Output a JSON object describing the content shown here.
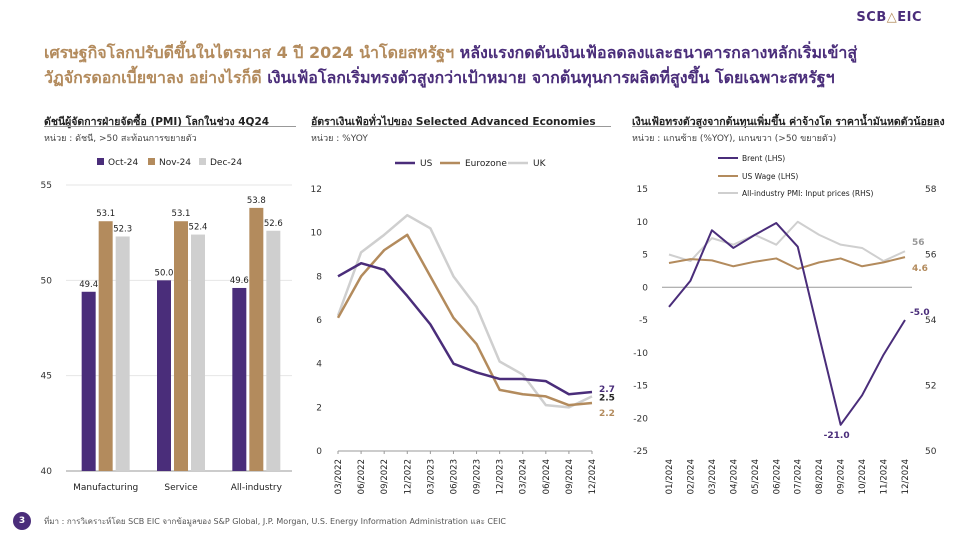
{
  "logo": {
    "text1": "SCB",
    "icon": "triangle-logo-icon",
    "text2": "EIC"
  },
  "headline": {
    "part1": "เศรษฐกิจโลกปรับดีขึ้นในไตรมาส 4 ปี 2024 นำโดยสหรัฐฯ ",
    "part2": "หลังแรงกดดันเงินเฟ้อลดลงและธนาคารกลางหลักเริ่มเข้าสู่",
    "part3": "วัฏจักรดอกเบี้ยขาลง อย่างไรก็ดี ",
    "part4": "เงินเฟ้อโลกเริ่มทรงตัวสูงกว่าเป้าหมาย จากต้นทุนการผลิตที่สูงขึ้น โดยเฉพาะสหรัฐฯ"
  },
  "colors": {
    "purple": "#4a2d7a",
    "gold": "#b38b5d",
    "grey": "#cfcfcf"
  },
  "panels": [
    {
      "title": "ดัชนีผู้จัดการฝ่ายจัดซื้อ (PMI) โลกในช่วง 4Q24",
      "subtitle": "หน่วย : ดัชนี, >50 สะท้อนการขยายตัว"
    },
    {
      "title": "อัตราเงินเฟ้อทั่วไปของ Selected Advanced Economies",
      "subtitle": "หน่วย : %YOY"
    },
    {
      "title": "เงินเฟ้อทรงตัวสูงจากต้นทุนเพิ่มขึ้น ค่าจ้างโต ราคาน้ำมันหดตัวน้อยลง",
      "subtitle": "หน่วย : แกนซ้าย (%YOY), แกนขวา (>50 ขยายตัว)"
    }
  ],
  "footer": {
    "page": "3",
    "source": "ที่มา : การวิเคราะห์โดย SCB EIC จากข้อมูลของ S&P Global, J.P. Morgan, U.S. Energy Information Administration และ CEIC"
  },
  "chart_data": [
    {
      "type": "bar",
      "title": "ดัชนีผู้จัดการฝ่ายจัดซื้อ (PMI) โลกในช่วง 4Q24",
      "categories": [
        "Manufacturing",
        "Service",
        "All-industry"
      ],
      "series": [
        {
          "name": "Oct-24",
          "color": "#4a2d7a",
          "values": [
            49.4,
            50.0,
            49.6
          ],
          "labels": [
            "49.4",
            "50.0",
            "49.6"
          ]
        },
        {
          "name": "Nov-24",
          "color": "#b38b5d",
          "values": [
            53.1,
            53.1,
            53.8
          ],
          "labels": [
            "53.1",
            "53.1",
            "53.8"
          ]
        },
        {
          "name": "Dec-24",
          "color": "#cfcfcf",
          "values": [
            52.3,
            52.4,
            52.6
          ],
          "labels": [
            "52.3",
            "52.4",
            "52.6"
          ]
        }
      ],
      "ylim": [
        40,
        55
      ],
      "yticks": [
        "40",
        "45",
        "50",
        "55"
      ],
      "legend": "top"
    },
    {
      "type": "line",
      "title": "อัตราเงินเฟ้อทั่วไปของ Selected Advanced Economies",
      "x_ticks": [
        "03/2022",
        "06/2022",
        "09/2022",
        "12/2022",
        "03/2023",
        "06/2023",
        "09/2023",
        "12/2023",
        "03/2024",
        "06/2024",
        "09/2024",
        "12/2024"
      ],
      "series": [
        {
          "name": "US",
          "color": "#4a2d7a",
          "values": [
            8.0,
            8.6,
            8.3,
            7.1,
            5.8,
            4.0,
            3.6,
            3.3,
            3.3,
            3.2,
            2.6,
            2.7
          ],
          "end_label": "2.7"
        },
        {
          "name": "Eurozone",
          "color": "#b38b5d",
          "values": [
            6.1,
            8.0,
            9.2,
            9.9,
            8.0,
            6.1,
            4.9,
            2.8,
            2.6,
            2.5,
            2.1,
            2.2
          ],
          "end_label": "2.2"
        },
        {
          "name": "UK",
          "color": "#cfcfcf",
          "values": [
            6.2,
            9.1,
            9.9,
            10.8,
            10.2,
            8.0,
            6.6,
            4.1,
            3.5,
            2.1,
            2.0,
            2.5
          ],
          "end_label": "2.5"
        }
      ],
      "ylim": [
        0,
        12
      ],
      "yticks": [
        "0",
        "2",
        "4",
        "6",
        "8",
        "10",
        "12"
      ],
      "legend": "top"
    },
    {
      "type": "line",
      "title": "เงินเฟ้อทรงตัวสูงจากต้นทุนเพิ่มขึ้น ค่าจ้างโต ราคาน้ำมันหดตัวน้อยลง",
      "x_ticks": [
        "01/2024",
        "02/2024",
        "03/2024",
        "04/2024",
        "05/2024",
        "06/2024",
        "07/2024",
        "08/2024",
        "09/2024",
        "10/2024",
        "11/2024",
        "12/2024"
      ],
      "series": [
        {
          "name": "Brent (LHS)",
          "axis": "left",
          "color": "#4a2d7a",
          "values": [
            -3.0,
            1.0,
            8.7,
            6.0,
            8.0,
            9.8,
            6.2,
            -7.5,
            -21.0,
            -16.5,
            -10.3,
            -5.0
          ],
          "point_labels": {
            "8": "-21.0",
            "11": "-5.0"
          }
        },
        {
          "name": "US Wage (LHS)",
          "axis": "left",
          "color": "#b38b5d",
          "values": [
            3.7,
            4.3,
            4.1,
            3.2,
            3.9,
            4.4,
            2.8,
            3.8,
            4.4,
            3.2,
            3.8,
            4.6
          ],
          "point_labels": {
            "11": "4.6"
          }
        },
        {
          "name": "All-industry PMI: Input prices (RHS)",
          "axis": "right",
          "color": "#cfcfcf",
          "values": [
            56.0,
            55.8,
            56.5,
            56.3,
            56.6,
            56.3,
            57.0,
            56.6,
            56.3,
            56.2,
            55.8,
            56.1
          ],
          "point_labels": {
            "11": "56"
          }
        }
      ],
      "ylim_left": [
        -25,
        15
      ],
      "yticks_left": [
        "-25",
        "-20",
        "-15",
        "-10",
        "-5",
        "0",
        "5",
        "10",
        "15"
      ],
      "ylim_right": [
        50,
        58
      ],
      "yticks_right": [
        "50",
        "52",
        "54",
        "56",
        "58"
      ],
      "legend": "top-left"
    }
  ]
}
